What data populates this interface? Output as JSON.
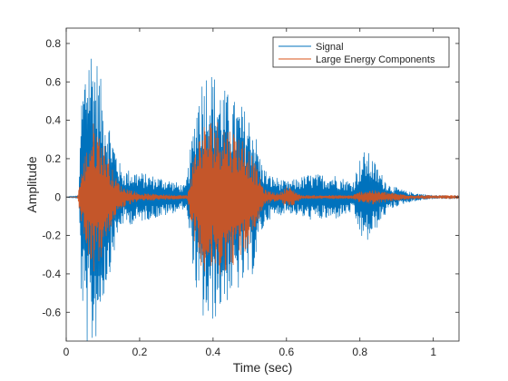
{
  "chart_data": {
    "type": "line",
    "xlabel": "Time (sec)",
    "ylabel": "Amplitude",
    "xlim": [
      0,
      1.07
    ],
    "ylim": [
      -0.75,
      0.88
    ],
    "x_ticks": [
      0,
      0.2,
      0.4,
      0.6,
      0.8,
      1
    ],
    "x_tick_labels": [
      "0",
      "0.2",
      "0.4",
      "0.6",
      "0.8",
      "1"
    ],
    "y_ticks": [
      -0.6,
      -0.4,
      -0.2,
      0,
      0.2,
      0.4,
      0.6,
      0.8
    ],
    "y_tick_labels": [
      "-0.6",
      "-0.4",
      "-0.2",
      "0",
      "0.2",
      "0.4",
      "0.6",
      "0.8"
    ],
    "grid": false,
    "legend_position": "top-right",
    "sample_interval": 0.001,
    "series": [
      {
        "name": "Signal",
        "color": "#0072BD",
        "envelope": [
          [
            0,
            0
          ],
          [
            0.035,
            0.01
          ],
          [
            0.04,
            0.5
          ],
          [
            0.05,
            0.7
          ],
          [
            0.06,
            0.85
          ],
          [
            0.07,
            0.82
          ],
          [
            0.085,
            0.72
          ],
          [
            0.1,
            0.55
          ],
          [
            0.13,
            0.3
          ],
          [
            0.15,
            0.15
          ],
          [
            0.19,
            0.14
          ],
          [
            0.22,
            0.12
          ],
          [
            0.27,
            0.1
          ],
          [
            0.325,
            0.06
          ],
          [
            0.345,
            0.35
          ],
          [
            0.36,
            0.6
          ],
          [
            0.385,
            0.7
          ],
          [
            0.42,
            0.6
          ],
          [
            0.45,
            0.52
          ],
          [
            0.48,
            0.48
          ],
          [
            0.51,
            0.4
          ],
          [
            0.53,
            0.2
          ],
          [
            0.55,
            0.12
          ],
          [
            0.58,
            0.1
          ],
          [
            0.6,
            0.08
          ],
          [
            0.63,
            0.1
          ],
          [
            0.66,
            0.12
          ],
          [
            0.7,
            0.12
          ],
          [
            0.73,
            0.12
          ],
          [
            0.755,
            0.1
          ],
          [
            0.78,
            0.08
          ],
          [
            0.8,
            0.2
          ],
          [
            0.815,
            0.25
          ],
          [
            0.83,
            0.22
          ],
          [
            0.86,
            0.12
          ],
          [
            0.88,
            0.07
          ],
          [
            0.9,
            0.05
          ],
          [
            0.93,
            0.03
          ],
          [
            0.96,
            0.02
          ],
          [
            1.0,
            0.01
          ],
          [
            1.07,
            0.01
          ]
        ]
      },
      {
        "name": "Large Energy Components",
        "color": "#D95319",
        "envelope": [
          [
            0,
            0
          ],
          [
            0.03,
            0
          ],
          [
            0.04,
            0.12
          ],
          [
            0.06,
            0.3
          ],
          [
            0.075,
            0.4
          ],
          [
            0.09,
            0.35
          ],
          [
            0.11,
            0.25
          ],
          [
            0.13,
            0.12
          ],
          [
            0.15,
            0.06
          ],
          [
            0.2,
            0.02
          ],
          [
            0.33,
            0.01
          ],
          [
            0.35,
            0.25
          ],
          [
            0.37,
            0.38
          ],
          [
            0.4,
            0.42
          ],
          [
            0.43,
            0.4
          ],
          [
            0.46,
            0.35
          ],
          [
            0.49,
            0.3
          ],
          [
            0.52,
            0.15
          ],
          [
            0.54,
            0.04
          ],
          [
            0.58,
            0.02
          ],
          [
            0.6,
            0.06
          ],
          [
            0.62,
            0.04
          ],
          [
            0.64,
            0.01
          ],
          [
            0.78,
            0.01
          ],
          [
            0.8,
            0.03
          ],
          [
            0.83,
            0.04
          ],
          [
            0.86,
            0.03
          ],
          [
            0.9,
            0.02
          ],
          [
            0.95,
            0.01
          ],
          [
            1.07,
            0.01
          ]
        ]
      }
    ]
  }
}
